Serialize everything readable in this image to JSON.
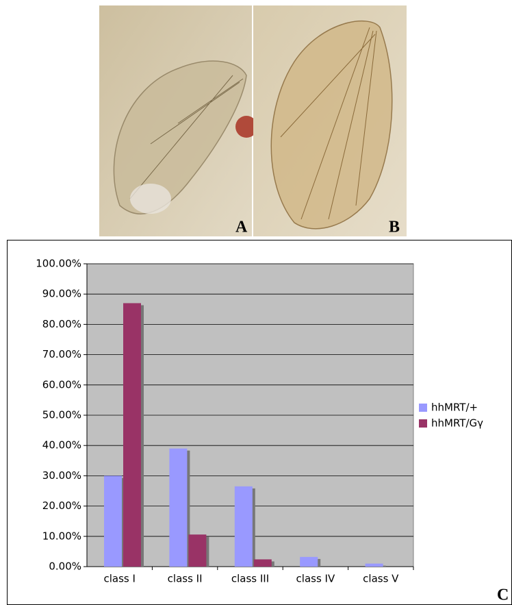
{
  "panel_labels": [
    "A",
    "B",
    "C"
  ],
  "chart_data": {
    "type": "bar",
    "categories": [
      "class I",
      "class II",
      "class III",
      "class IV",
      "class V"
    ],
    "series": [
      {
        "name": "hhMRT/+",
        "color": "#9999ff",
        "values": [
          30,
          39,
          26.5,
          3.2,
          1
        ]
      },
      {
        "name": "hhMRT/Gγ",
        "color": "#993366",
        "values": [
          87,
          10.6,
          2.4,
          0,
          0
        ]
      }
    ],
    "ylim": [
      0,
      100
    ],
    "yticks": [
      {
        "value": 0,
        "label": "0.00%"
      },
      {
        "value": 10,
        "label": "10.00%"
      },
      {
        "value": 20,
        "label": "20.00%"
      },
      {
        "value": 30,
        "label": "30.00%"
      },
      {
        "value": 40,
        "label": "40.00%"
      },
      {
        "value": 50,
        "label": "50.00%"
      },
      {
        "value": 60,
        "label": "60.00%"
      },
      {
        "value": 70,
        "label": "70.00%"
      },
      {
        "value": 80,
        "label": "80.00%"
      },
      {
        "value": 90,
        "label": "90.00%"
      },
      {
        "value": 100,
        "label": "100.00%"
      }
    ],
    "grid": true,
    "legend": "right"
  }
}
